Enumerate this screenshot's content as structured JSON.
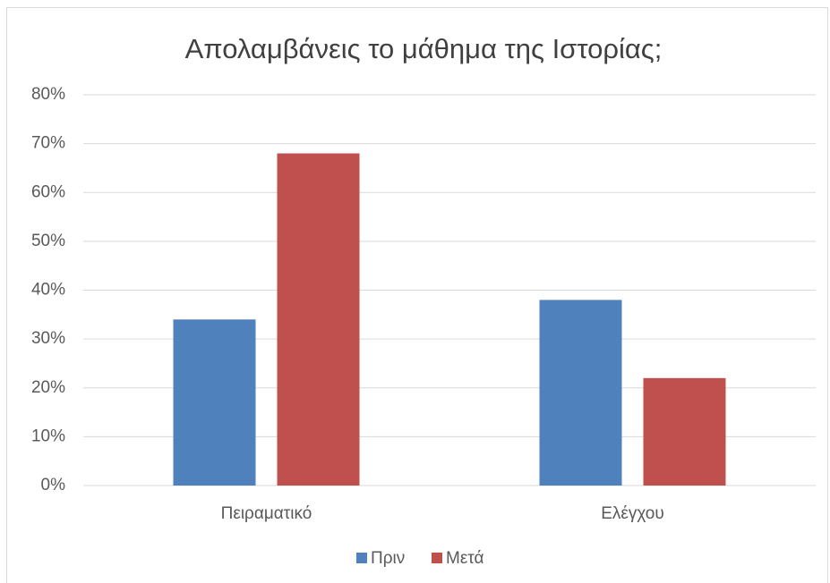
{
  "chart_data": {
    "type": "bar",
    "title": "Απολαμβάνεις το μάθημα της Ιστορίας;",
    "categories": [
      "Πειραματικό",
      "Ελέγχου"
    ],
    "series": [
      {
        "name": "Πριν",
        "color": "#4f81bd",
        "values": [
          34,
          38
        ]
      },
      {
        "name": "Μετά",
        "color": "#c0504d",
        "values": [
          68,
          22
        ]
      }
    ],
    "ylim": [
      0,
      80
    ],
    "yticks": [
      {
        "value": 0,
        "label": "0%"
      },
      {
        "value": 10,
        "label": "10%"
      },
      {
        "value": 20,
        "label": "20%"
      },
      {
        "value": 30,
        "label": "30%"
      },
      {
        "value": 40,
        "label": "40%"
      },
      {
        "value": 50,
        "label": "50%"
      },
      {
        "value": 60,
        "label": "60%"
      },
      {
        "value": 70,
        "label": "70%"
      },
      {
        "value": 80,
        "label": "80%"
      }
    ],
    "grid": true,
    "legend": "bottom"
  }
}
